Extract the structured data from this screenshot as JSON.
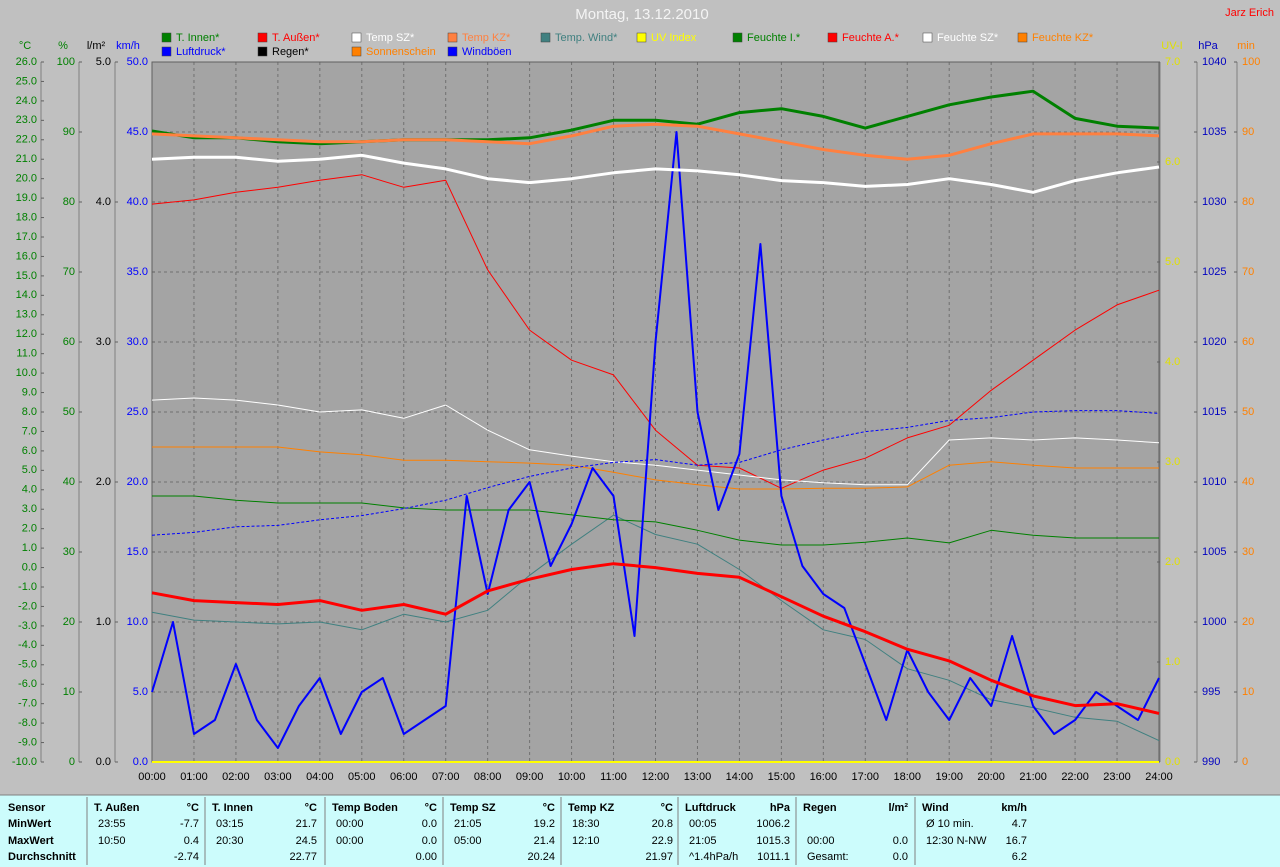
{
  "chart_data": {
    "type": "line",
    "title": "Montag, 13.12.2010",
    "author": "Jarz Erich",
    "x": [
      0,
      1,
      2,
      3,
      4,
      5,
      6,
      7,
      8,
      9,
      10,
      11,
      12,
      13,
      14,
      15,
      16,
      17,
      18,
      19,
      20,
      21,
      22,
      23,
      24
    ],
    "xlim": [
      0,
      24
    ],
    "xticks": [
      {
        "value": 0,
        "label": "00:00"
      },
      {
        "value": 1,
        "label": "01:00"
      },
      {
        "value": 2,
        "label": "02:00"
      },
      {
        "value": 3,
        "label": "03:00"
      },
      {
        "value": 4,
        "label": "04:00"
      },
      {
        "value": 5,
        "label": "05:00"
      },
      {
        "value": 6,
        "label": "06:00"
      },
      {
        "value": 7,
        "label": "07:00"
      },
      {
        "value": 8,
        "label": "08:00"
      },
      {
        "value": 9,
        "label": "09:00"
      },
      {
        "value": 10,
        "label": "10:00"
      },
      {
        "value": 11,
        "label": "11:00"
      },
      {
        "value": 12,
        "label": "12:00"
      },
      {
        "value": 13,
        "label": "13:00"
      },
      {
        "value": 14,
        "label": "14:00"
      },
      {
        "value": 15,
        "label": "15:00"
      },
      {
        "value": 16,
        "label": "16:00"
      },
      {
        "value": 17,
        "label": "17:00"
      },
      {
        "value": 18,
        "label": "18:00"
      },
      {
        "value": 19,
        "label": "19:00"
      },
      {
        "value": 20,
        "label": "20:00"
      },
      {
        "value": 21,
        "label": "21:00"
      },
      {
        "value": 22,
        "label": "22:00"
      },
      {
        "value": 23,
        "label": "23:00"
      },
      {
        "value": 24,
        "label": "24:00"
      }
    ],
    "axes": [
      {
        "label": "°C",
        "color": "#008000",
        "side": "left",
        "lim": [
          -10,
          26
        ],
        "ticks": [
          {
            "value": -10,
            "label": "-10.0"
          },
          {
            "value": -9,
            "label": "-9.0"
          },
          {
            "value": -8,
            "label": "-8.0"
          },
          {
            "value": -7,
            "label": "-7.0"
          },
          {
            "value": -6,
            "label": "-6.0"
          },
          {
            "value": -5,
            "label": "-5.0"
          },
          {
            "value": -4,
            "label": "-4.0"
          },
          {
            "value": -3,
            "label": "-3.0"
          },
          {
            "value": -2,
            "label": "-2.0"
          },
          {
            "value": -1,
            "label": "-1.0"
          },
          {
            "value": 0,
            "label": "0.0"
          },
          {
            "value": 1,
            "label": "1.0"
          },
          {
            "value": 2,
            "label": "2.0"
          },
          {
            "value": 3,
            "label": "3.0"
          },
          {
            "value": 4,
            "label": "4.0"
          },
          {
            "value": 5,
            "label": "5.0"
          },
          {
            "value": 6,
            "label": "6.0"
          },
          {
            "value": 7,
            "label": "7.0"
          },
          {
            "value": 8,
            "label": "8.0"
          },
          {
            "value": 9,
            "label": "9.0"
          },
          {
            "value": 10,
            "label": "10.0"
          },
          {
            "value": 11,
            "label": "11.0"
          },
          {
            "value": 12,
            "label": "12.0"
          },
          {
            "value": 13,
            "label": "13.0"
          },
          {
            "value": 14,
            "label": "14.0"
          },
          {
            "value": 15,
            "label": "15.0"
          },
          {
            "value": 16,
            "label": "16.0"
          },
          {
            "value": 17,
            "label": "17.0"
          },
          {
            "value": 18,
            "label": "18.0"
          },
          {
            "value": 19,
            "label": "19.0"
          },
          {
            "value": 20,
            "label": "20.0"
          },
          {
            "value": 21,
            "label": "21.0"
          },
          {
            "value": 22,
            "label": "22.0"
          },
          {
            "value": 23,
            "label": "23.0"
          },
          {
            "value": 24,
            "label": "24.0"
          },
          {
            "value": 25,
            "label": "25.0"
          },
          {
            "value": 26,
            "label": "26.0"
          }
        ]
      },
      {
        "label": "%",
        "color": "#008000",
        "side": "left",
        "grid": true,
        "lim": [
          0,
          100
        ],
        "ticks": [
          0,
          10,
          20,
          30,
          40,
          50,
          60,
          70,
          80,
          90,
          100
        ]
      },
      {
        "label": "l/m²",
        "color": "#000000",
        "side": "left",
        "lim": [
          0,
          5
        ],
        "ticks": [
          {
            "value": 0,
            "label": "0.0"
          },
          {
            "value": 1,
            "label": "1.0"
          },
          {
            "value": 2,
            "label": "2.0"
          },
          {
            "value": 3,
            "label": "3.0"
          },
          {
            "value": 4,
            "label": "4.0"
          },
          {
            "value": 5,
            "label": "5.0"
          }
        ]
      },
      {
        "label": "km/h",
        "color": "#0000ff",
        "side": "left",
        "lim": [
          0,
          50
        ],
        "ticks": [
          {
            "value": 0,
            "label": "0.0"
          },
          {
            "value": 5,
            "label": "5.0"
          },
          {
            "value": 10,
            "label": "10.0"
          },
          {
            "value": 15,
            "label": "15.0"
          },
          {
            "value": 20,
            "label": "20.0"
          },
          {
            "value": 25,
            "label": "25.0"
          },
          {
            "value": 30,
            "label": "30.0"
          },
          {
            "value": 35,
            "label": "35.0"
          },
          {
            "value": 40,
            "label": "40.0"
          },
          {
            "value": 45,
            "label": "45.0"
          },
          {
            "value": 50,
            "label": "50.0"
          }
        ]
      },
      {
        "label": "UV-I",
        "color": "#e0e000",
        "side": "right",
        "lim": [
          0,
          7
        ],
        "ticks": [
          {
            "value": 0,
            "label": "0.0"
          },
          {
            "value": 1,
            "label": "1.0"
          },
          {
            "value": 2,
            "label": "2.0"
          },
          {
            "value": 3,
            "label": "3.0"
          },
          {
            "value": 4,
            "label": "4.0"
          },
          {
            "value": 5,
            "label": "5.0"
          },
          {
            "value": 6,
            "label": "6.0"
          },
          {
            "value": 7,
            "label": "7.0"
          }
        ]
      },
      {
        "label": "hPa",
        "color": "#0000c0",
        "side": "right",
        "lim": [
          990,
          1040
        ],
        "ticks": [
          990,
          995,
          1000,
          1005,
          1010,
          1015,
          1020,
          1025,
          1030,
          1035,
          1040
        ]
      },
      {
        "label": "min",
        "color": "#ff8000",
        "side": "right",
        "lim": [
          0,
          100
        ],
        "ticks": [
          0,
          10,
          20,
          30,
          40,
          50,
          60,
          70,
          80,
          90,
          100
        ]
      }
    ],
    "series": [
      {
        "name": "T. Innen*",
        "color": "#008000",
        "axis": 0,
        "width": 3,
        "values": [
          22.45,
          22.1,
          22.1,
          21.9,
          21.8,
          21.9,
          22.0,
          22.0,
          22.0,
          22.1,
          22.5,
          23.0,
          23.0,
          22.8,
          23.4,
          23.6,
          23.2,
          22.6,
          23.2,
          23.8,
          24.2,
          24.5,
          23.1,
          22.7,
          22.6
        ]
      },
      {
        "name": "T. Außen*",
        "color": "#ff0000",
        "axis": 0,
        "width": 3,
        "values": [
          -1.3,
          -1.7,
          -1.8,
          -1.9,
          -1.7,
          -2.2,
          -1.9,
          -2.4,
          -1.2,
          -0.6,
          -0.1,
          0.2,
          0.0,
          -0.3,
          -0.5,
          -1.5,
          -2.5,
          -3.3,
          -4.2,
          -4.8,
          -5.8,
          -6.6,
          -7.1,
          -7.0,
          -7.5
        ]
      },
      {
        "name": "Temp SZ*",
        "color": "#ffffff",
        "axis": 0,
        "width": 3,
        "values": [
          21.0,
          21.1,
          21.1,
          20.9,
          21.0,
          21.2,
          20.8,
          20.5,
          20.0,
          19.8,
          20.0,
          20.3,
          20.5,
          20.4,
          20.2,
          19.9,
          19.8,
          19.6,
          19.7,
          20.0,
          19.7,
          19.3,
          19.9,
          20.3,
          20.6
        ]
      },
      {
        "name": "Temp KZ*",
        "color": "#ff8040",
        "axis": 0,
        "width": 3,
        "values": [
          22.3,
          22.2,
          22.1,
          22.0,
          21.9,
          21.9,
          22.0,
          22.0,
          21.9,
          21.8,
          22.2,
          22.7,
          22.8,
          22.7,
          22.3,
          21.9,
          21.5,
          21.2,
          21.0,
          21.2,
          21.8,
          22.3,
          22.3,
          22.3,
          22.2
        ]
      },
      {
        "name": "Temp. Wind*",
        "color": "#408080",
        "axis": 0,
        "width": 1,
        "values": [
          -2.3,
          -2.7,
          -2.8,
          -2.9,
          -2.8,
          -3.2,
          -2.4,
          -2.8,
          -2.2,
          -0.4,
          1.2,
          2.7,
          1.7,
          1.2,
          -0.1,
          -1.7,
          -3.2,
          -3.7,
          -5.2,
          -5.8,
          -6.8,
          -7.2,
          -7.7,
          -7.9,
          -8.9
        ]
      },
      {
        "name": "UV Index",
        "color": "#ffff00",
        "axis": 4,
        "width": 2,
        "values": [
          0,
          0,
          0,
          0,
          0,
          0,
          0,
          0,
          0,
          0,
          0,
          0,
          0,
          0,
          0,
          0,
          0,
          0,
          0,
          0,
          0,
          0,
          0,
          0,
          0
        ]
      },
      {
        "name": "Feuchte I.*",
        "color": "#008000",
        "axis": 1,
        "width": 1,
        "values": [
          38,
          38,
          37.4,
          37,
          37,
          37,
          36.3,
          36,
          36,
          36,
          35.3,
          34.6,
          34.3,
          33.1,
          31.7,
          31,
          31,
          31.4,
          32,
          31.3,
          33.1,
          32.4,
          32,
          32,
          32
        ]
      },
      {
        "name": "Feuchte A.*",
        "color": "#ff0000",
        "axis": 1,
        "width": 1,
        "values": [
          79.7,
          80.3,
          81.4,
          82.1,
          83.1,
          83.9,
          82.1,
          83.1,
          70.3,
          61.7,
          57.4,
          55.3,
          47.4,
          42.4,
          42,
          39.1,
          41.7,
          43.4,
          46.3,
          48.1,
          53.1,
          57.4,
          61.7,
          65.3,
          67.4
        ]
      },
      {
        "name": "Feuchte SZ*",
        "color": "#ffffff",
        "axis": 1,
        "width": 1,
        "values": [
          51.7,
          52,
          51.7,
          51,
          50,
          50.3,
          49.1,
          51,
          47.4,
          44.6,
          43.7,
          42.9,
          42.4,
          41.7,
          41,
          40.3,
          39.9,
          39.6,
          39.6,
          46,
          46.3,
          46,
          46.3,
          46,
          45.6
        ]
      },
      {
        "name": "Feuchte KZ*",
        "color": "#ff8000",
        "axis": 1,
        "width": 1,
        "values": [
          45,
          45,
          45,
          45,
          44.3,
          43.9,
          43.1,
          43.1,
          42.9,
          42.7,
          42.4,
          41.4,
          40.3,
          39.6,
          39,
          39,
          39.1,
          39.1,
          39.3,
          42.4,
          42.9,
          42.4,
          42,
          42,
          42
        ]
      },
      {
        "name": "Luftdruck*",
        "color": "#0000ff",
        "axis": 5,
        "width": 1,
        "dashed": true,
        "values": [
          1006.2,
          1006.4,
          1006.8,
          1006.9,
          1007.3,
          1007.6,
          1008.1,
          1008.7,
          1009.6,
          1010.4,
          1011.0,
          1011.4,
          1011.6,
          1011.2,
          1011.4,
          1012.3,
          1013.0,
          1013.6,
          1013.9,
          1014.4,
          1014.6,
          1015.0,
          1015.1,
          1015.1,
          1014.9
        ]
      },
      {
        "name": "Regen*",
        "color": "#000000",
        "axis": 2,
        "width": 1,
        "values": [
          0,
          0,
          0,
          0,
          0,
          0,
          0,
          0,
          0,
          0,
          0,
          0,
          0,
          0,
          0,
          0,
          0,
          0,
          0,
          0,
          0,
          0,
          0,
          0,
          0
        ]
      },
      {
        "name": "Sonnenschein",
        "color": "#ff8000",
        "axis": 6,
        "width": 1,
        "values": [
          0,
          0,
          0,
          0,
          0,
          0,
          0,
          0,
          0,
          0,
          0,
          0,
          0,
          0,
          0,
          0,
          0,
          0,
          0,
          0,
          0,
          0,
          0,
          0,
          0
        ]
      },
      {
        "name": "Windböen",
        "color": "#0000ff",
        "axis": 3,
        "width": 2,
        "x": [
          0,
          0.5,
          1,
          1.5,
          2,
          2.5,
          3,
          3.5,
          4,
          4.5,
          5,
          5.5,
          6,
          6.5,
          7,
          7.5,
          8,
          8.5,
          9,
          9.5,
          10,
          10.5,
          11,
          11.5,
          12,
          12.5,
          13,
          13.5,
          14,
          14.5,
          15,
          15.5,
          16,
          16.5,
          17,
          17.5,
          18,
          18.5,
          19,
          19.5,
          20,
          20.5,
          21,
          21.5,
          22,
          22.5,
          23,
          23.5,
          24
        ],
        "values": [
          5,
          10,
          2,
          3,
          7,
          3,
          1,
          4,
          6,
          2,
          5,
          6,
          2,
          3,
          4,
          19,
          12,
          18,
          20,
          14,
          17,
          21,
          19,
          9,
          30,
          45,
          25,
          18,
          22,
          37,
          19,
          14,
          12,
          11,
          7,
          3,
          8,
          5,
          3,
          6,
          4,
          9,
          4,
          2,
          3,
          5,
          4,
          3,
          6
        ]
      }
    ]
  },
  "table": {
    "row_labels": [
      "Sensor",
      "MinWert",
      "MaxWert",
      "Durchschnitt"
    ],
    "groups": [
      {
        "name": "T. Außen",
        "unit": "°C",
        "min": {
          "time": "23:55",
          "value": "-7.7"
        },
        "max": {
          "time": "10:50",
          "value": "0.4"
        },
        "avg": {
          "value": "-2.74"
        }
      },
      {
        "name": "T. Innen",
        "unit": "°C",
        "min": {
          "time": "03:15",
          "value": "21.7"
        },
        "max": {
          "time": "20:30",
          "value": "24.5"
        },
        "avg": {
          "value": "22.77"
        }
      },
      {
        "name": "Temp Boden",
        "unit": "°C",
        "min": {
          "time": "00:00",
          "value": "0.0"
        },
        "max": {
          "time": "00:00",
          "value": "0.0"
        },
        "avg": {
          "value": "0.00"
        }
      },
      {
        "name": "Temp SZ",
        "unit": "°C",
        "min": {
          "time": "21:05",
          "value": "19.2"
        },
        "max": {
          "time": "05:00",
          "value": "21.4"
        },
        "avg": {
          "value": "20.24"
        }
      },
      {
        "name": "Temp KZ",
        "unit": "°C",
        "min": {
          "time": "18:30",
          "value": "20.8"
        },
        "max": {
          "time": "12:10",
          "value": "22.9"
        },
        "avg": {
          "value": "21.97"
        }
      },
      {
        "name": "Luftdruck",
        "unit": "hPa",
        "min": {
          "time": "00:05",
          "value": "1006.2"
        },
        "max": {
          "time": "21:05",
          "value": "1015.3"
        },
        "avg": {
          "time": "^1.4hPa/h",
          "value": "1011.1"
        }
      },
      {
        "name": "Regen",
        "unit": "l/m²",
        "max": {
          "time": "00:00",
          "value": "0.0"
        },
        "avg": {
          "time": "Gesamt:",
          "value": "0.0"
        }
      },
      {
        "name": "Wind",
        "unit": "km/h",
        "min": {
          "time": "Ø 10 min.",
          "value": "4.7"
        },
        "max": {
          "time": "12:30 N-NW",
          "value": "16.7"
        },
        "avg": {
          "value": "6.2"
        }
      }
    ]
  }
}
